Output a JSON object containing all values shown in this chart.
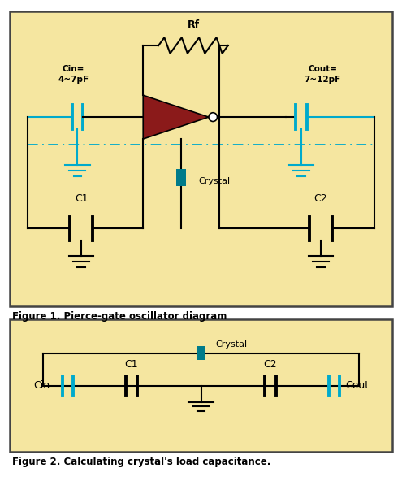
{
  "fig_width": 4.95,
  "fig_height": 5.97,
  "panel1_bg": "#F5E6A0",
  "panel2_bg": "#F5E6A0",
  "border_color": "#444444",
  "wire_color": "#000000",
  "cyan_color": "#00AACC",
  "crystal_color": "#007B8A",
  "inverter_color": "#8B1A1A",
  "figure1_caption": "Figure 1. Pierce-gate oscillator diagram",
  "figure2_caption": "Figure 2. Calculating crystal's load capacitance.",
  "label_rf": "Rf",
  "label_cin_val": "Cin=\n4~7pF",
  "label_cout_val": "Cout=\n7~12pF",
  "label_c1": "C1",
  "label_c2": "C2",
  "label_crystal": "Crystal",
  "label_cin": "Cin",
  "label_cout": "Cout"
}
